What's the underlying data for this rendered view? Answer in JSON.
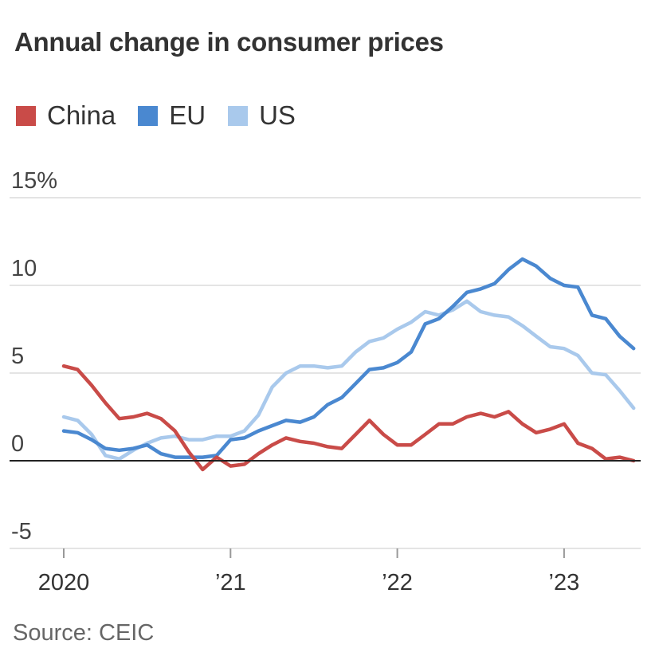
{
  "chart_data": {
    "type": "line",
    "title": "Annual change in consumer prices",
    "source": "Source: CEIC",
    "x_tick_labels": [
      "2020",
      "’21",
      "’22",
      "’23"
    ],
    "x_tick_values": [
      2020,
      2021,
      2022,
      2023
    ],
    "y_tick_labels": [
      "15%",
      "10",
      "5",
      "0",
      "-5"
    ],
    "y_tick_values": [
      15,
      10,
      5,
      0,
      -5
    ],
    "ylim": [
      -5,
      15
    ],
    "xlim": [
      2020,
      2023.5
    ],
    "grid": "horizontal",
    "legend_placement": "top-left",
    "series": [
      {
        "name": "China",
        "color": "#c94b48",
        "x": [
          2020.0,
          2020.083,
          2020.167,
          2020.25,
          2020.333,
          2020.417,
          2020.5,
          2020.583,
          2020.667,
          2020.75,
          2020.833,
          2020.917,
          2021.0,
          2021.083,
          2021.167,
          2021.25,
          2021.333,
          2021.417,
          2021.5,
          2021.583,
          2021.667,
          2021.75,
          2021.833,
          2021.917,
          2022.0,
          2022.083,
          2022.167,
          2022.25,
          2022.333,
          2022.417,
          2022.5,
          2022.583,
          2022.667,
          2022.75,
          2022.833,
          2022.917,
          2023.0,
          2023.083,
          2023.167,
          2023.25,
          2023.333,
          2023.417
        ],
        "values": [
          5.4,
          5.2,
          4.3,
          3.3,
          2.4,
          2.5,
          2.7,
          2.4,
          1.7,
          0.5,
          -0.5,
          0.2,
          -0.3,
          -0.2,
          0.4,
          0.9,
          1.3,
          1.1,
          1.0,
          0.8,
          0.7,
          1.5,
          2.3,
          1.5,
          0.9,
          0.9,
          1.5,
          2.1,
          2.1,
          2.5,
          2.7,
          2.5,
          2.8,
          2.1,
          1.6,
          1.8,
          2.1,
          1.0,
          0.7,
          0.1,
          0.2,
          0.0
        ]
      },
      {
        "name": "EU",
        "color": "#4a88d0",
        "x": [
          2020.0,
          2020.083,
          2020.167,
          2020.25,
          2020.333,
          2020.417,
          2020.5,
          2020.583,
          2020.667,
          2020.75,
          2020.833,
          2020.917,
          2021.0,
          2021.083,
          2021.167,
          2021.25,
          2021.333,
          2021.417,
          2021.5,
          2021.583,
          2021.667,
          2021.75,
          2021.833,
          2021.917,
          2022.0,
          2022.083,
          2022.167,
          2022.25,
          2022.333,
          2022.417,
          2022.5,
          2022.583,
          2022.667,
          2022.75,
          2022.833,
          2022.917,
          2023.0,
          2023.083,
          2023.167,
          2023.25,
          2023.333,
          2023.417
        ],
        "values": [
          1.7,
          1.6,
          1.2,
          0.7,
          0.6,
          0.7,
          0.9,
          0.4,
          0.2,
          0.2,
          0.2,
          0.3,
          1.2,
          1.3,
          1.7,
          2.0,
          2.3,
          2.2,
          2.5,
          3.2,
          3.6,
          4.4,
          5.2,
          5.3,
          5.6,
          6.2,
          7.8,
          8.1,
          8.8,
          9.6,
          9.8,
          10.1,
          10.9,
          11.5,
          11.1,
          10.4,
          10.0,
          9.9,
          8.3,
          8.1,
          7.1,
          6.4
        ]
      },
      {
        "name": "US",
        "color": "#a9c9ec",
        "x": [
          2020.0,
          2020.083,
          2020.167,
          2020.25,
          2020.333,
          2020.417,
          2020.5,
          2020.583,
          2020.667,
          2020.75,
          2020.833,
          2020.917,
          2021.0,
          2021.083,
          2021.167,
          2021.25,
          2021.333,
          2021.417,
          2021.5,
          2021.583,
          2021.667,
          2021.75,
          2021.833,
          2021.917,
          2022.0,
          2022.083,
          2022.167,
          2022.25,
          2022.333,
          2022.417,
          2022.5,
          2022.583,
          2022.667,
          2022.75,
          2022.833,
          2022.917,
          2023.0,
          2023.083,
          2023.167,
          2023.25,
          2023.333,
          2023.417
        ],
        "values": [
          2.5,
          2.3,
          1.5,
          0.3,
          0.1,
          0.6,
          1.0,
          1.3,
          1.4,
          1.2,
          1.2,
          1.4,
          1.4,
          1.7,
          2.6,
          4.2,
          5.0,
          5.4,
          5.4,
          5.3,
          5.4,
          6.2,
          6.8,
          7.0,
          7.5,
          7.9,
          8.5,
          8.3,
          8.6,
          9.1,
          8.5,
          8.3,
          8.2,
          7.7,
          7.1,
          6.5,
          6.4,
          6.0,
          5.0,
          4.9,
          4.0,
          3.0
        ]
      }
    ]
  }
}
